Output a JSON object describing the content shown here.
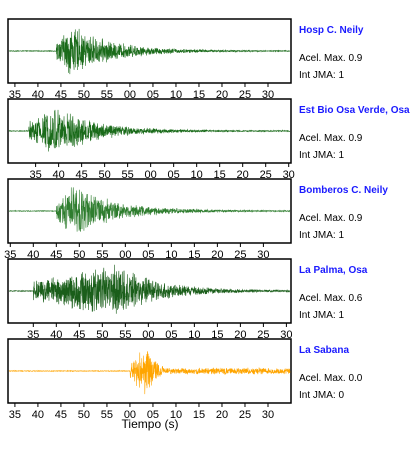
{
  "chart_data": {
    "type": "line",
    "xlabel": "Tiempo (s)",
    "tick_labels": [
      "35",
      "40",
      "45",
      "50",
      "55",
      "00",
      "05",
      "10",
      "15",
      "20",
      "25",
      "30"
    ],
    "accel_prefix": "Acel. Max.",
    "jma_prefix": "Int JMA:",
    "stations": [
      {
        "name": "Hosp C. Neily",
        "accel_max": "0.9",
        "int_jma": "1",
        "color": "#1a6b1a",
        "arrival_s": 44,
        "peak_s": 47,
        "amplitude": 0.92,
        "tick_offset_s": 0
      },
      {
        "name": "Est Bio Osa Verde, Osa",
        "accel_max": "0.9",
        "int_jma": "1",
        "color": "#1a6b1a",
        "arrival_s": 38,
        "peak_s": 44,
        "amplitude": 0.9,
        "tick_offset_s": 4.5
      },
      {
        "name": "Bomberos C. Neily",
        "accel_max": "0.9",
        "int_jma": "1",
        "color": "#2e7d2e",
        "arrival_s": 44,
        "peak_s": 48,
        "amplitude": 0.95,
        "tick_offset_s": -1
      },
      {
        "name": "La Palma, Osa",
        "accel_max": "0.6",
        "int_jma": "1",
        "color": "#1a5e1a",
        "arrival_s": 39,
        "peak_s": 57,
        "amplitude": 0.95,
        "tick_offset_s": 4
      },
      {
        "name": "La Sabana",
        "accel_max": "0.0",
        "int_jma": "0",
        "color": "#ffa500",
        "arrival_s": 60,
        "peak_s": 64,
        "amplitude": 0.95,
        "tick_offset_s": 0
      }
    ]
  }
}
